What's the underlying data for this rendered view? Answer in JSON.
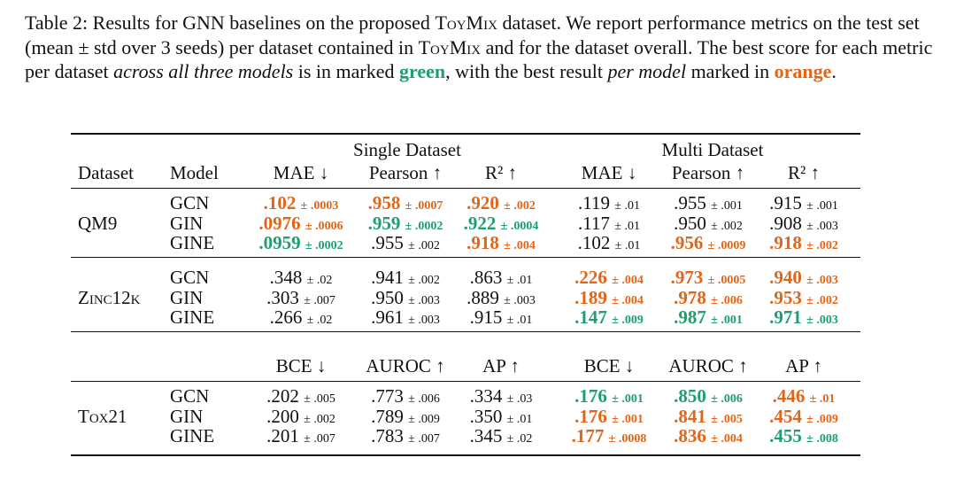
{
  "caption": {
    "part1": "Table 2: Results for GNN baselines on the proposed ",
    "dataset_name": "ToyMix",
    "part2": " dataset. We report performance metrics on the test set (mean ± std over 3 seeds) per dataset contained in ",
    "dataset_name_2": "ToyMix",
    "part3": " and for the dataset overall. The best score for each metric per dataset ",
    "emph1": "across all three models",
    "part4": " is in marked ",
    "green_word": "green",
    "part5": ", with the best result ",
    "emph2": "per model",
    "part6": " marked in ",
    "orange_word": "orange",
    "part7": "."
  },
  "colors": {
    "green": "#1f9e6e",
    "orange": "#e0661a"
  },
  "table": {
    "group_single": "Single Dataset",
    "group_multi": "Multi Dataset",
    "col_dataset": "Dataset",
    "col_model": "Model",
    "reg_metrics": [
      "MAE ↓",
      "Pearson ↑",
      "R² ↑",
      "MAE ↓",
      "Pearson ↑",
      "R² ↑"
    ],
    "cls_metrics": [
      "BCE ↓",
      "AUROC ↑",
      "AP ↑",
      "BCE ↓",
      "AUROC ↑",
      "AP ↑"
    ],
    "datasets": [
      {
        "name": "QM9",
        "rows": [
          {
            "model": "GCN",
            "cells": [
              {
                "v": ".102",
                "s": "± .0003",
                "c": "orange"
              },
              {
                "v": ".958",
                "s": "± .0007",
                "c": "orange"
              },
              {
                "v": ".920",
                "s": "± .002",
                "c": "orange"
              },
              {
                "v": ".119",
                "s": "± .01",
                "c": ""
              },
              {
                "v": ".955",
                "s": "± .001",
                "c": ""
              },
              {
                "v": ".915",
                "s": "± .001",
                "c": ""
              }
            ]
          },
          {
            "model": "GIN",
            "cells": [
              {
                "v": ".0976",
                "s": "± .0006",
                "c": "orange"
              },
              {
                "v": ".959",
                "s": "± .0002",
                "c": "green"
              },
              {
                "v": ".922",
                "s": "± .0004",
                "c": "green"
              },
              {
                "v": ".117",
                "s": "± .01",
                "c": ""
              },
              {
                "v": ".950",
                "s": "± .002",
                "c": ""
              },
              {
                "v": ".908",
                "s": "± .003",
                "c": ""
              }
            ]
          },
          {
            "model": "GINE",
            "cells": [
              {
                "v": ".0959",
                "s": "± .0002",
                "c": "green"
              },
              {
                "v": ".955",
                "s": "± .002",
                "c": ""
              },
              {
                "v": ".918",
                "s": "± .004",
                "c": "orange"
              },
              {
                "v": ".102",
                "s": "± .01",
                "c": ""
              },
              {
                "v": ".956",
                "s": "± .0009",
                "c": "orange"
              },
              {
                "v": ".918",
                "s": "± .002",
                "c": "orange"
              }
            ]
          }
        ]
      },
      {
        "name": "Zinc12k",
        "rows": [
          {
            "model": "GCN",
            "cells": [
              {
                "v": ".348",
                "s": "± .02",
                "c": ""
              },
              {
                "v": ".941",
                "s": "± .002",
                "c": ""
              },
              {
                "v": ".863",
                "s": "± .01",
                "c": ""
              },
              {
                "v": ".226",
                "s": "± .004",
                "c": "orange"
              },
              {
                "v": ".973",
                "s": "± .0005",
                "c": "orange"
              },
              {
                "v": ".940",
                "s": "± .003",
                "c": "orange"
              }
            ]
          },
          {
            "model": "GIN",
            "cells": [
              {
                "v": ".303",
                "s": "± .007",
                "c": ""
              },
              {
                "v": ".950",
                "s": "± .003",
                "c": ""
              },
              {
                "v": ".889",
                "s": "± .003",
                "c": ""
              },
              {
                "v": ".189",
                "s": "± .004",
                "c": "orange"
              },
              {
                "v": ".978",
                "s": "± .006",
                "c": "orange"
              },
              {
                "v": ".953",
                "s": "± .002",
                "c": "orange"
              }
            ]
          },
          {
            "model": "GINE",
            "cells": [
              {
                "v": ".266",
                "s": "± .02",
                "c": ""
              },
              {
                "v": ".961",
                "s": "± .003",
                "c": ""
              },
              {
                "v": ".915",
                "s": "± .01",
                "c": ""
              },
              {
                "v": ".147",
                "s": "± .009",
                "c": "green"
              },
              {
                "v": ".987",
                "s": "± .001",
                "c": "green"
              },
              {
                "v": ".971",
                "s": "± .003",
                "c": "green"
              }
            ]
          }
        ]
      },
      {
        "name": "Tox21",
        "rows": [
          {
            "model": "GCN",
            "cells": [
              {
                "v": ".202",
                "s": "± .005",
                "c": ""
              },
              {
                "v": ".773",
                "s": "± .006",
                "c": ""
              },
              {
                "v": ".334",
                "s": "± .03",
                "c": ""
              },
              {
                "v": ".176",
                "s": "± .001",
                "c": "green"
              },
              {
                "v": ".850",
                "s": "± .006",
                "c": "green"
              },
              {
                "v": ".446",
                "s": "± .01",
                "c": "orange"
              }
            ]
          },
          {
            "model": "GIN",
            "cells": [
              {
                "v": ".200",
                "s": "± .002",
                "c": ""
              },
              {
                "v": ".789",
                "s": "± .009",
                "c": ""
              },
              {
                "v": ".350",
                "s": "± .01",
                "c": ""
              },
              {
                "v": ".176",
                "s": "± .001",
                "c": "orange"
              },
              {
                "v": ".841",
                "s": "± .005",
                "c": "orange"
              },
              {
                "v": ".454",
                "s": "± .009",
                "c": "orange"
              }
            ]
          },
          {
            "model": "GINE",
            "cells": [
              {
                "v": ".201",
                "s": "± .007",
                "c": ""
              },
              {
                "v": ".783",
                "s": "± .007",
                "c": ""
              },
              {
                "v": ".345",
                "s": "± .02",
                "c": ""
              },
              {
                "v": ".177",
                "s": "± .0008",
                "c": "orange"
              },
              {
                "v": ".836",
                "s": "± .004",
                "c": "orange"
              },
              {
                "v": ".455",
                "s": "± .008",
                "c": "green"
              }
            ]
          }
        ]
      }
    ]
  }
}
